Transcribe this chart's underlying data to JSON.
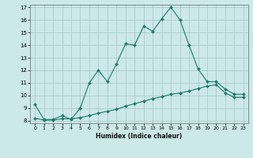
{
  "title": "",
  "xlabel": "Humidex (Indice chaleur)",
  "bg_color": "#cce8e8",
  "grid_color": "#aacccc",
  "line_color": "#1a7a6a",
  "xlim": [
    -0.5,
    23.5
  ],
  "ylim": [
    7.8,
    17.2
  ],
  "xticks": [
    0,
    1,
    2,
    3,
    4,
    5,
    6,
    7,
    8,
    9,
    10,
    11,
    12,
    13,
    14,
    15,
    16,
    17,
    18,
    19,
    20,
    21,
    22,
    23
  ],
  "yticks": [
    8,
    9,
    10,
    11,
    12,
    13,
    14,
    15,
    16,
    17
  ],
  "line1_x": [
    0,
    1,
    2,
    3,
    4,
    5,
    5,
    6,
    7,
    8,
    9,
    10,
    11,
    12,
    13,
    14,
    15,
    16,
    17,
    18,
    19,
    20,
    21,
    22,
    23
  ],
  "line1_y": [
    9.3,
    8.1,
    8.1,
    8.4,
    8.1,
    9.0,
    9.0,
    11.0,
    12.0,
    11.1,
    12.5,
    14.1,
    14.0,
    15.5,
    15.1,
    16.1,
    17.0,
    16.0,
    14.0,
    12.1,
    11.1,
    11.1,
    10.5,
    10.1,
    10.1
  ],
  "line2_x": [
    0,
    1,
    2,
    3,
    4,
    5,
    6,
    7,
    8,
    9,
    10,
    11,
    12,
    13,
    14,
    15,
    16,
    17,
    18,
    19,
    20,
    21,
    22,
    23
  ],
  "line2_y": [
    8.2,
    8.05,
    8.05,
    8.15,
    8.15,
    8.25,
    8.4,
    8.6,
    8.75,
    8.9,
    9.15,
    9.35,
    9.55,
    9.75,
    9.9,
    10.1,
    10.2,
    10.35,
    10.55,
    10.75,
    10.85,
    10.2,
    9.85,
    9.85
  ]
}
